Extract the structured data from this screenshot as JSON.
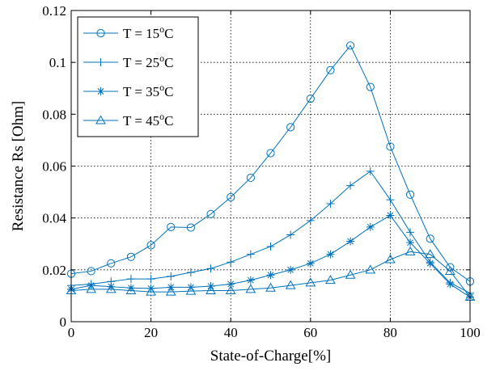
{
  "chart_data": {
    "type": "line",
    "xlabel": "State-of-Charge[%]",
    "ylabel": "Resistance Rs [Ohm]",
    "xlim": [
      0,
      100
    ],
    "ylim": [
      0,
      0.12
    ],
    "x_ticks": [
      0,
      20,
      40,
      60,
      80,
      100
    ],
    "y_ticks": [
      0,
      0.02,
      0.04,
      0.06,
      0.08,
      0.1,
      0.12
    ],
    "x_tick_labels": [
      "0",
      "20",
      "40",
      "60",
      "80",
      "100"
    ],
    "y_tick_labels": [
      "0",
      "0.02",
      "0.04",
      "0.06",
      "0.08",
      "0.1",
      "0.12"
    ],
    "grid": true,
    "legend_position": "top-left",
    "line_color": "#0072bd",
    "x": [
      0,
      5,
      10,
      15,
      20,
      25,
      30,
      35,
      40,
      45,
      50,
      55,
      60,
      65,
      70,
      75,
      80,
      85,
      90,
      95,
      100
    ],
    "series": [
      {
        "name": "T = 15",
        "name_sup": "o",
        "name_unit": "C",
        "marker": "circle",
        "values": [
          0.0185,
          0.0195,
          0.0225,
          0.025,
          0.0295,
          0.0365,
          0.0363,
          0.0415,
          0.048,
          0.0555,
          0.065,
          0.075,
          0.086,
          0.097,
          0.1065,
          0.0905,
          0.0675,
          0.049,
          0.032,
          0.021,
          0.0155
        ]
      },
      {
        "name": "T = 25",
        "name_sup": "o",
        "name_unit": "C",
        "marker": "plus",
        "values": [
          0.014,
          0.0145,
          0.0155,
          0.0165,
          0.0165,
          0.0175,
          0.019,
          0.0205,
          0.023,
          0.026,
          0.029,
          0.0335,
          0.039,
          0.0455,
          0.0525,
          0.058,
          0.047,
          0.0345,
          0.023,
          0.015,
          0.011
        ]
      },
      {
        "name": "T = 35",
        "name_sup": "o",
        "name_unit": "C",
        "marker": "star",
        "values": [
          0.0125,
          0.014,
          0.0135,
          0.013,
          0.0128,
          0.0133,
          0.0133,
          0.0137,
          0.0145,
          0.016,
          0.018,
          0.02,
          0.0225,
          0.026,
          0.031,
          0.0365,
          0.041,
          0.0305,
          0.0225,
          0.0145,
          0.0095
        ]
      },
      {
        "name": "T = 45",
        "name_sup": "o",
        "name_unit": "C",
        "marker": "triangle",
        "values": [
          0.012,
          0.0125,
          0.0125,
          0.012,
          0.0115,
          0.0115,
          0.0118,
          0.012,
          0.012,
          0.0125,
          0.013,
          0.014,
          0.015,
          0.016,
          0.018,
          0.02,
          0.024,
          0.027,
          0.026,
          0.0195,
          0.0095
        ]
      }
    ]
  }
}
